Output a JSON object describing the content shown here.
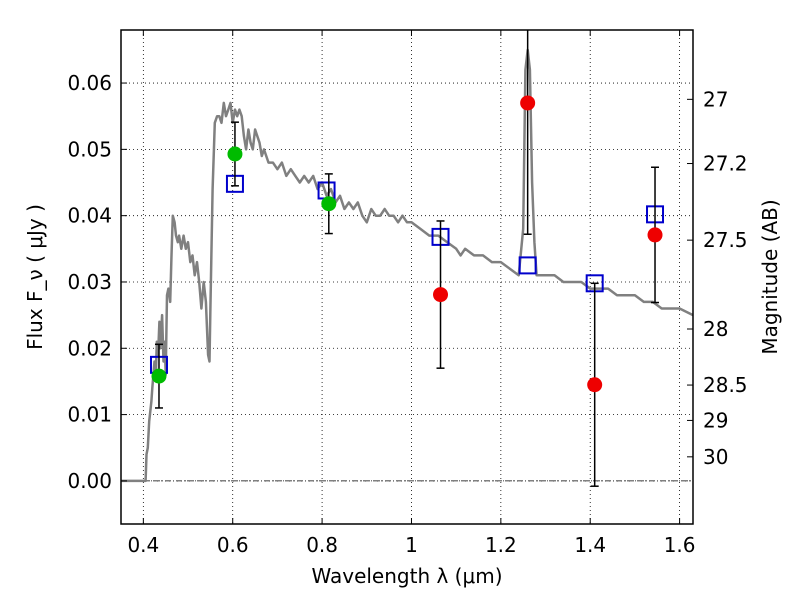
{
  "chart_data": {
    "type": "scatter",
    "xlabel": "Wavelength  λ (μm)",
    "ylabel": "Flux  F_ν  ( μJy )",
    "ylabel_right": "Magnitude (AB)",
    "xlim": [
      0.35,
      1.63
    ],
    "ylim": [
      -0.0065,
      0.068
    ],
    "grid": true,
    "x_ticks": [
      {
        "value": 0.4,
        "label": "0.4"
      },
      {
        "value": 0.6,
        "label": "0.6"
      },
      {
        "value": 0.8,
        "label": "0.8"
      },
      {
        "value": 1.0,
        "label": "1"
      },
      {
        "value": 1.2,
        "label": "1.2"
      },
      {
        "value": 1.4,
        "label": "1.4"
      },
      {
        "value": 1.6,
        "label": "1.6"
      }
    ],
    "y_ticks": [
      {
        "value": 0.0,
        "label": "0.00"
      },
      {
        "value": 0.01,
        "label": "0.01"
      },
      {
        "value": 0.02,
        "label": "0.02"
      },
      {
        "value": 0.03,
        "label": "0.03"
      },
      {
        "value": 0.04,
        "label": "0.04"
      },
      {
        "value": 0.05,
        "label": "0.05"
      },
      {
        "value": 0.06,
        "label": "0.06"
      }
    ],
    "right_ticks": [
      {
        "mag": 27.0,
        "label": "27"
      },
      {
        "mag": 27.2,
        "label": "27.2"
      },
      {
        "mag": 27.5,
        "label": "27.5"
      },
      {
        "mag": 28.0,
        "label": "28"
      },
      {
        "mag": 28.5,
        "label": "28.5"
      },
      {
        "mag": 29.0,
        "label": "29"
      },
      {
        "mag": 30.0,
        "label": "30"
      }
    ],
    "series": [
      {
        "kind": "line",
        "color": "#808080",
        "points": [
          [
            0.35,
            0.0
          ],
          [
            0.4,
            0.0
          ],
          [
            0.405,
            0.0
          ],
          [
            0.407,
            0.004
          ],
          [
            0.41,
            0.005
          ],
          [
            0.413,
            0.009
          ],
          [
            0.418,
            0.012
          ],
          [
            0.42,
            0.014
          ],
          [
            0.425,
            0.018
          ],
          [
            0.428,
            0.016
          ],
          [
            0.43,
            0.021
          ],
          [
            0.433,
            0.019
          ],
          [
            0.436,
            0.024
          ],
          [
            0.438,
            0.02
          ],
          [
            0.442,
            0.025
          ],
          [
            0.445,
            0.018
          ],
          [
            0.448,
            0.021
          ],
          [
            0.45,
            0.016
          ],
          [
            0.453,
            0.028
          ],
          [
            0.456,
            0.029
          ],
          [
            0.46,
            0.027
          ],
          [
            0.463,
            0.034
          ],
          [
            0.466,
            0.04
          ],
          [
            0.47,
            0.039
          ],
          [
            0.473,
            0.037
          ],
          [
            0.477,
            0.036
          ],
          [
            0.48,
            0.037
          ],
          [
            0.485,
            0.035
          ],
          [
            0.49,
            0.037
          ],
          [
            0.495,
            0.035
          ],
          [
            0.5,
            0.036
          ],
          [
            0.505,
            0.033
          ],
          [
            0.51,
            0.034
          ],
          [
            0.515,
            0.031
          ],
          [
            0.52,
            0.033
          ],
          [
            0.525,
            0.03
          ],
          [
            0.53,
            0.026
          ],
          [
            0.535,
            0.03
          ],
          [
            0.54,
            0.027
          ],
          [
            0.545,
            0.019
          ],
          [
            0.548,
            0.018
          ],
          [
            0.55,
            0.026
          ],
          [
            0.555,
            0.044
          ],
          [
            0.56,
            0.054
          ],
          [
            0.565,
            0.055
          ],
          [
            0.57,
            0.055
          ],
          [
            0.575,
            0.054
          ],
          [
            0.58,
            0.057
          ],
          [
            0.585,
            0.055
          ],
          [
            0.59,
            0.056
          ],
          [
            0.595,
            0.057
          ],
          [
            0.6,
            0.054
          ],
          [
            0.605,
            0.056
          ],
          [
            0.61,
            0.055
          ],
          [
            0.615,
            0.056
          ],
          [
            0.62,
            0.055
          ],
          [
            0.625,
            0.052
          ],
          [
            0.63,
            0.05
          ],
          [
            0.635,
            0.053
          ],
          [
            0.64,
            0.051
          ],
          [
            0.645,
            0.05
          ],
          [
            0.65,
            0.053
          ],
          [
            0.655,
            0.052
          ],
          [
            0.66,
            0.051
          ],
          [
            0.665,
            0.049
          ],
          [
            0.67,
            0.05
          ],
          [
            0.68,
            0.048
          ],
          [
            0.69,
            0.048
          ],
          [
            0.7,
            0.047
          ],
          [
            0.71,
            0.048
          ],
          [
            0.72,
            0.046
          ],
          [
            0.73,
            0.047
          ],
          [
            0.74,
            0.046
          ],
          [
            0.75,
            0.045
          ],
          [
            0.76,
            0.046
          ],
          [
            0.77,
            0.045
          ],
          [
            0.78,
            0.046
          ],
          [
            0.79,
            0.044
          ],
          [
            0.8,
            0.045
          ],
          [
            0.81,
            0.043
          ],
          [
            0.82,
            0.044
          ],
          [
            0.83,
            0.042
          ],
          [
            0.84,
            0.043
          ],
          [
            0.85,
            0.041
          ],
          [
            0.86,
            0.042
          ],
          [
            0.87,
            0.041
          ],
          [
            0.88,
            0.042
          ],
          [
            0.89,
            0.04
          ],
          [
            0.9,
            0.039
          ],
          [
            0.91,
            0.041
          ],
          [
            0.92,
            0.04
          ],
          [
            0.93,
            0.04
          ],
          [
            0.94,
            0.041
          ],
          [
            0.95,
            0.04
          ],
          [
            0.96,
            0.04
          ],
          [
            0.97,
            0.039
          ],
          [
            0.98,
            0.04
          ],
          [
            0.99,
            0.039
          ],
          [
            1.0,
            0.039
          ],
          [
            1.02,
            0.038
          ],
          [
            1.04,
            0.037
          ],
          [
            1.06,
            0.037
          ],
          [
            1.08,
            0.036
          ],
          [
            1.1,
            0.035
          ],
          [
            1.11,
            0.034
          ],
          [
            1.12,
            0.035
          ],
          [
            1.14,
            0.034
          ],
          [
            1.16,
            0.034
          ],
          [
            1.18,
            0.033
          ],
          [
            1.2,
            0.033
          ],
          [
            1.22,
            0.032
          ],
          [
            1.24,
            0.031
          ],
          [
            1.25,
            0.038
          ],
          [
            1.255,
            0.062
          ],
          [
            1.26,
            0.065
          ],
          [
            1.265,
            0.062
          ],
          [
            1.27,
            0.045
          ],
          [
            1.275,
            0.036
          ],
          [
            1.28,
            0.031
          ],
          [
            1.3,
            0.031
          ],
          [
            1.32,
            0.031
          ],
          [
            1.34,
            0.03
          ],
          [
            1.36,
            0.03
          ],
          [
            1.38,
            0.03
          ],
          [
            1.4,
            0.029
          ],
          [
            1.42,
            0.029
          ],
          [
            1.44,
            0.029
          ],
          [
            1.46,
            0.028
          ],
          [
            1.48,
            0.028
          ],
          [
            1.5,
            0.028
          ],
          [
            1.52,
            0.027
          ],
          [
            1.54,
            0.027
          ],
          [
            1.56,
            0.026
          ],
          [
            1.58,
            0.026
          ],
          [
            1.6,
            0.026
          ],
          [
            1.63,
            0.025
          ]
        ]
      },
      {
        "kind": "markers",
        "marker": "square-open",
        "color": "#0000cc",
        "x": [
          0.435,
          0.605,
          0.81,
          1.065,
          1.26,
          1.41,
          1.545
        ],
        "y": [
          0.0175,
          0.0448,
          0.0438,
          0.0368,
          0.0325,
          0.0298,
          0.0402
        ]
      },
      {
        "kind": "markers",
        "marker": "circle",
        "color": "#00bb00",
        "x": [
          0.435,
          0.605,
          0.815
        ],
        "y": [
          0.0158,
          0.0493,
          0.0418
        ],
        "err": [
          0.0048,
          0.0048,
          0.0045
        ]
      },
      {
        "kind": "markers",
        "marker": "circle",
        "color": "#ee0000",
        "x": [
          1.065,
          1.26,
          1.41,
          1.545
        ],
        "y": [
          0.0281,
          0.057,
          0.0145,
          0.0371
        ],
        "err": [
          0.0111,
          0.0198,
          0.0153,
          0.0102
        ]
      }
    ]
  }
}
